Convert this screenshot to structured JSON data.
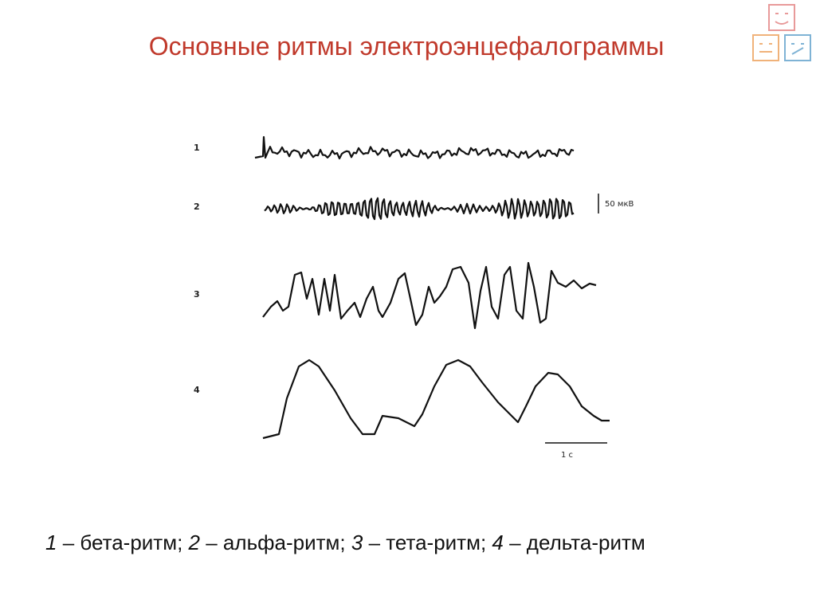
{
  "header": {
    "title": "Основные ритмы электроэнцефалограммы"
  },
  "figure": {
    "traces": [
      {
        "label": "1"
      },
      {
        "label": "2"
      },
      {
        "label": "3"
      },
      {
        "label": "4"
      }
    ],
    "amplitude_scale": "50 мкВ",
    "time_scale": "1 с"
  },
  "caption": [
    {
      "number": "1",
      "text": "– бета-ритм;"
    },
    {
      "number": "2",
      "text": "– альфа-ритм;"
    },
    {
      "number": "3",
      "text": "– тета-ритм;"
    },
    {
      "number": "4",
      "text": "– дельта-ритм"
    }
  ]
}
